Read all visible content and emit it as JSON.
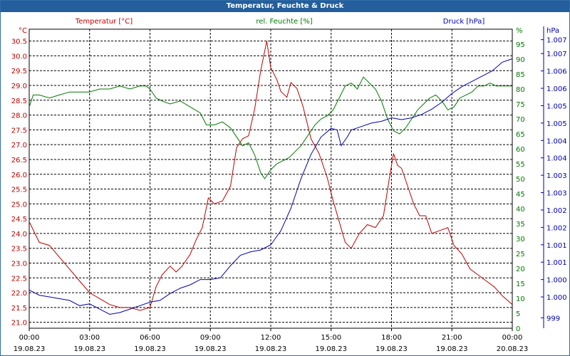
{
  "window": {
    "title": "Temperatur, Feuchte & Druck"
  },
  "colors": {
    "titlebar": "#245e9c",
    "temperature": "#c00000",
    "humidity": "#007a00",
    "pressure": "#0000b0",
    "grid": "#000000"
  },
  "chart_data": {
    "type": "line",
    "title": "Temperatur, Feuchte & Druck",
    "grid": true,
    "x_ticks": [
      {
        "time": "00:00",
        "date": "19.08.23"
      },
      {
        "time": "03:00",
        "date": "19.08.23"
      },
      {
        "time": "06:00",
        "date": "19.08.23"
      },
      {
        "time": "09:00",
        "date": "19.08.23"
      },
      {
        "time": "12:00",
        "date": "19.08.23"
      },
      {
        "time": "15:00",
        "date": "19.08.23"
      },
      {
        "time": "18:00",
        "date": "19.08.23"
      },
      {
        "time": "21:00",
        "date": "19.08.23"
      },
      {
        "time": "00:00",
        "date": "20.08.23"
      }
    ],
    "xlim_hours": [
      0,
      24
    ],
    "axes": {
      "temperature": {
        "label": "Temperatur [°C]",
        "unit": "°C",
        "ylim": [
          20.8,
          30.9
        ],
        "ticks": [
          "21.0",
          "21.5",
          "22.0",
          "22.5",
          "23.0",
          "23.5",
          "24.0",
          "24.5",
          "25.0",
          "25.5",
          "26.0",
          "26.5",
          "27.0",
          "27.5",
          "28.0",
          "28.5",
          "29.0",
          "29.5",
          "30.0",
          "30.5"
        ]
      },
      "humidity": {
        "label": "rel. Feuchte [%]",
        "unit": "%",
        "ylim": [
          0,
          100
        ],
        "ticks": [
          "0",
          "5",
          "10",
          "15",
          "20",
          "25",
          "30",
          "35",
          "40",
          "45",
          "50",
          "55",
          "60",
          "65",
          "70",
          "75",
          "80",
          "85",
          "90",
          "95"
        ]
      },
      "pressure": {
        "label": "Druck [hPa]",
        "unit": "hPa",
        "ylim": [
          998.8,
          1007.4
        ],
        "ticks": [
          "999",
          "1.000",
          "1.000",
          "1.001",
          "1.001",
          "1.002",
          "1.002",
          "1.003",
          "1.003",
          "1.004",
          "1.004",
          "1.005",
          "1.005",
          "1.006",
          "1.006",
          "1.007",
          "1.007"
        ]
      }
    },
    "series": [
      {
        "name": "Temperatur [°C]",
        "axis": "temperature",
        "points": [
          [
            0,
            24.4
          ],
          [
            0.5,
            23.7
          ],
          [
            1,
            23.6
          ],
          [
            1.5,
            23.2
          ],
          [
            2,
            22.8
          ],
          [
            2.5,
            22.4
          ],
          [
            3,
            22.0
          ],
          [
            3.5,
            21.8
          ],
          [
            4,
            21.6
          ],
          [
            4.5,
            21.5
          ],
          [
            5,
            21.5
          ],
          [
            5.5,
            21.4
          ],
          [
            6,
            21.5
          ],
          [
            6.3,
            22.2
          ],
          [
            6.6,
            22.6
          ],
          [
            7,
            22.9
          ],
          [
            7.3,
            22.7
          ],
          [
            7.6,
            22.9
          ],
          [
            8,
            23.3
          ],
          [
            8.3,
            23.8
          ],
          [
            8.6,
            24.2
          ],
          [
            8.9,
            25.2
          ],
          [
            9.2,
            25.0
          ],
          [
            9.6,
            25.1
          ],
          [
            10,
            25.6
          ],
          [
            10.3,
            26.9
          ],
          [
            10.6,
            27.2
          ],
          [
            10.9,
            27.3
          ],
          [
            11.2,
            28.2
          ],
          [
            11.5,
            29.5
          ],
          [
            11.8,
            30.5
          ],
          [
            12,
            29.6
          ],
          [
            12.3,
            29.2
          ],
          [
            12.5,
            28.8
          ],
          [
            12.8,
            28.6
          ],
          [
            13,
            29.1
          ],
          [
            13.3,
            28.9
          ],
          [
            13.6,
            28.3
          ],
          [
            14,
            27.2
          ],
          [
            14.4,
            26.7
          ],
          [
            14.8,
            25.9
          ],
          [
            15.1,
            25.1
          ],
          [
            15.4,
            24.4
          ],
          [
            15.7,
            23.7
          ],
          [
            16,
            23.5
          ],
          [
            16.4,
            24.0
          ],
          [
            16.8,
            24.3
          ],
          [
            17.2,
            24.2
          ],
          [
            17.6,
            24.6
          ],
          [
            17.9,
            25.9
          ],
          [
            18.1,
            26.7
          ],
          [
            18.3,
            26.3
          ],
          [
            18.5,
            26.2
          ],
          [
            18.8,
            25.6
          ],
          [
            19.1,
            25.0
          ],
          [
            19.4,
            24.6
          ],
          [
            19.7,
            24.6
          ],
          [
            20,
            24.0
          ],
          [
            20.4,
            24.1
          ],
          [
            20.8,
            24.2
          ],
          [
            21.1,
            23.6
          ],
          [
            21.5,
            23.3
          ],
          [
            21.9,
            22.8
          ],
          [
            22.3,
            22.6
          ],
          [
            22.7,
            22.4
          ],
          [
            23.1,
            22.2
          ],
          [
            23.5,
            21.9
          ],
          [
            24,
            21.6
          ]
        ]
      },
      {
        "name": "rel. Feuchte [%]",
        "axis": "humidity",
        "points": [
          [
            0,
            74
          ],
          [
            0.2,
            78
          ],
          [
            0.5,
            78
          ],
          [
            1,
            77
          ],
          [
            1.5,
            78
          ],
          [
            2,
            79
          ],
          [
            2.5,
            79
          ],
          [
            3,
            79
          ],
          [
            3.5,
            80
          ],
          [
            4,
            80
          ],
          [
            4.5,
            81
          ],
          [
            5,
            80
          ],
          [
            5.5,
            81
          ],
          [
            5.8,
            81
          ],
          [
            6,
            80
          ],
          [
            6.3,
            77
          ],
          [
            6.6,
            76
          ],
          [
            7,
            75
          ],
          [
            7.5,
            76
          ],
          [
            8,
            74
          ],
          [
            8.5,
            72
          ],
          [
            8.8,
            68
          ],
          [
            9.2,
            68
          ],
          [
            9.6,
            69
          ],
          [
            10,
            67
          ],
          [
            10.3,
            64
          ],
          [
            10.6,
            61
          ],
          [
            10.9,
            62
          ],
          [
            11.2,
            58
          ],
          [
            11.5,
            52
          ],
          [
            11.7,
            50
          ],
          [
            12,
            53
          ],
          [
            12.3,
            55
          ],
          [
            12.6,
            56
          ],
          [
            12.9,
            57
          ],
          [
            13.2,
            59
          ],
          [
            13.5,
            61
          ],
          [
            13.8,
            64
          ],
          [
            14.2,
            68
          ],
          [
            14.5,
            70
          ],
          [
            14.8,
            71
          ],
          [
            15.1,
            73
          ],
          [
            15.4,
            77
          ],
          [
            15.7,
            81
          ],
          [
            16,
            82
          ],
          [
            16.3,
            80
          ],
          [
            16.6,
            84
          ],
          [
            16.9,
            82
          ],
          [
            17.2,
            80
          ],
          [
            17.5,
            76
          ],
          [
            17.8,
            70
          ],
          [
            18.1,
            66
          ],
          [
            18.4,
            65
          ],
          [
            18.7,
            67
          ],
          [
            19,
            70
          ],
          [
            19.3,
            73
          ],
          [
            19.6,
            75
          ],
          [
            19.9,
            77
          ],
          [
            20.2,
            78
          ],
          [
            20.5,
            76
          ],
          [
            20.8,
            73
          ],
          [
            21.1,
            74
          ],
          [
            21.4,
            77
          ],
          [
            21.7,
            78
          ],
          [
            22,
            79
          ],
          [
            22.3,
            81
          ],
          [
            22.6,
            81
          ],
          [
            22.9,
            82
          ],
          [
            23.2,
            81
          ],
          [
            23.6,
            81
          ],
          [
            24,
            81
          ]
        ]
      },
      {
        "name": "Druck [hPa]",
        "axis": "pressure",
        "points": [
          [
            0,
            999.9
          ],
          [
            0.5,
            999.75
          ],
          [
            1,
            999.7
          ],
          [
            1.5,
            999.65
          ],
          [
            2,
            999.6
          ],
          [
            2.5,
            999.45
          ],
          [
            3,
            999.5
          ],
          [
            3.5,
            999.35
          ],
          [
            4,
            999.2
          ],
          [
            4.5,
            999.25
          ],
          [
            5,
            999.35
          ],
          [
            5.5,
            999.45
          ],
          [
            6,
            999.55
          ],
          [
            6.5,
            999.6
          ],
          [
            7,
            999.8
          ],
          [
            7.5,
            999.95
          ],
          [
            8,
            1000.05
          ],
          [
            8.5,
            1000.2
          ],
          [
            9,
            1000.2
          ],
          [
            9.5,
            1000.25
          ],
          [
            10,
            1000.6
          ],
          [
            10.5,
            1000.9
          ],
          [
            11,
            1001.0
          ],
          [
            11.5,
            1001.05
          ],
          [
            12,
            1001.2
          ],
          [
            12.5,
            1001.6
          ],
          [
            13,
            1002.25
          ],
          [
            13.5,
            1003.1
          ],
          [
            14,
            1003.8
          ],
          [
            14.5,
            1004.3
          ],
          [
            15,
            1004.55
          ],
          [
            15.3,
            1004.5
          ],
          [
            15.5,
            1004.05
          ],
          [
            15.8,
            1004.3
          ],
          [
            16,
            1004.5
          ],
          [
            16.5,
            1004.6
          ],
          [
            17,
            1004.7
          ],
          [
            17.5,
            1004.75
          ],
          [
            18,
            1004.85
          ],
          [
            18.5,
            1004.8
          ],
          [
            19,
            1004.85
          ],
          [
            19.5,
            1004.95
          ],
          [
            20,
            1005.1
          ],
          [
            20.5,
            1005.3
          ],
          [
            21,
            1005.55
          ],
          [
            21.5,
            1005.75
          ],
          [
            22,
            1005.9
          ],
          [
            22.5,
            1006.05
          ],
          [
            23,
            1006.2
          ],
          [
            23.5,
            1006.45
          ],
          [
            24,
            1006.55
          ]
        ]
      }
    ]
  }
}
